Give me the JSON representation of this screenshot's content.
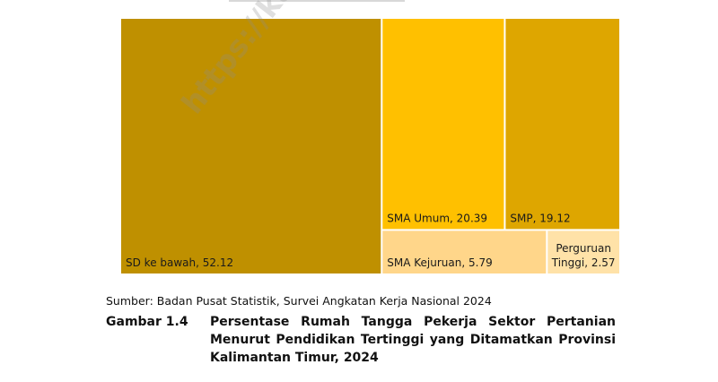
{
  "chart_data": {
    "type": "treemap",
    "items": [
      {
        "label": "SD ke bawah",
        "value": 52.12,
        "color": "#bf9000"
      },
      {
        "label": "SMA Umum",
        "value": 20.39,
        "color": "#ffc000"
      },
      {
        "label": "SMP",
        "value": 19.12,
        "color": "#dea600"
      },
      {
        "label": "SMA Kejuruan",
        "value": 5.79,
        "color": "#ffd68a"
      },
      {
        "label": "Perguruan Tinggi",
        "value": 2.57,
        "color": "#ffe2a8"
      }
    ]
  },
  "watermark": "https://kaltim.bps",
  "source_note": "Sumber: Badan Pusat Statistik, Survei Angkatan Kerja Nasional 2024",
  "figure_caption": {
    "label": "Gambar 1.4",
    "text": "Persentase Rumah Tangga Pekerja Sektor Pertanian Menurut Pendidikan Tertinggi yang Ditamatkan Provinsi Kalimantan Timur, 2024"
  }
}
